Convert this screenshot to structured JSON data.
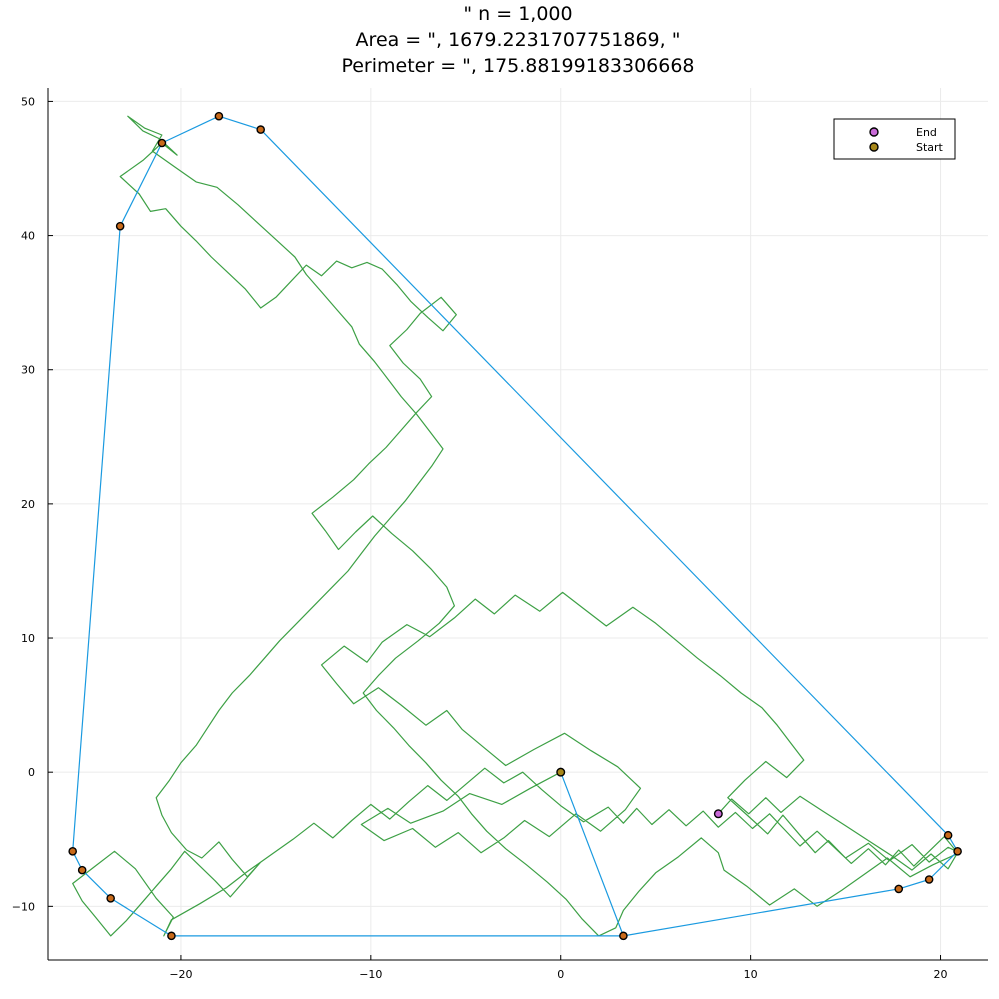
{
  "chart_data": {
    "type": "line",
    "title_lines": [
      "\" n = 1,000",
      "Area = \", 1679.2231707751869, \"",
      "Perimeter = \", 175.88199183306668"
    ],
    "xlabel": "",
    "ylabel": "",
    "xlim": [
      -27,
      22.5
    ],
    "ylim": [
      -14,
      51
    ],
    "x_ticks": [
      -20,
      -10,
      0,
      10,
      20
    ],
    "y_ticks": [
      -10,
      0,
      10,
      20,
      30,
      40,
      50
    ],
    "grid": true,
    "legend_position": "top-right",
    "legend": [
      {
        "label": "End",
        "color": "#c86ad7"
      },
      {
        "label": "Start",
        "color": "#a8881a"
      }
    ],
    "colors": {
      "walk": "#3da045",
      "hull": "#1a9ae0",
      "end": "#c86ad7",
      "start": "#a8881a",
      "hull_vertex": "#c86a1a"
    },
    "series": [
      {
        "role": "walk",
        "x": [
          0,
          -1.6,
          -3.1,
          -4.8,
          -6.2,
          -7.9,
          -9.1,
          -10.5,
          -9.3,
          -7.8,
          -6.6,
          -5.4,
          -4.2,
          -3.0,
          -1.9,
          -0.6,
          0.8,
          2.1,
          3.4,
          4.2,
          3.0,
          1.6,
          0.2,
          -1.4,
          -2.9,
          -4.1,
          -5.2,
          -6.0,
          -7.1,
          -8.4,
          -9.6,
          -10.9,
          -11.8,
          -12.6,
          -11.4,
          -10.2,
          -9.4,
          -8.1,
          -6.9,
          -5.6,
          -4.5,
          -3.5,
          -2.4,
          -1.1,
          0.1,
          1.2,
          2.4,
          3.8,
          5.0,
          6.1,
          7.2,
          8.4,
          9.5,
          10.6,
          11.4,
          12.1,
          12.8,
          11.9,
          10.8,
          9.7,
          8.8,
          9.9,
          10.9,
          11.7,
          12.6,
          13.4,
          14.1,
          15.0,
          16.2,
          17.3,
          18.5,
          19.4,
          20.4,
          21.0,
          19.6,
          18.4,
          17.2,
          16.0,
          14.8,
          13.5,
          12.3,
          11.0,
          9.8,
          8.6,
          8.3,
          7.4,
          6.2,
          5.0,
          4.1,
          3.3,
          2.9,
          2.0,
          1.1,
          0.3,
          -0.7,
          -1.8,
          -2.9,
          -3.9,
          -4.7,
          -5.4,
          -6.3,
          -7.1,
          -8.0,
          -8.8,
          -9.7,
          -10.4,
          -9.6,
          -8.7,
          -7.5,
          -6.4,
          -5.6,
          -6.0,
          -6.8,
          -7.8,
          -8.9,
          -9.9,
          -10.8,
          -11.7,
          -12.4,
          -13.1,
          -12.0,
          -10.9,
          -10.1,
          -9.2,
          -8.4,
          -7.6,
          -6.8,
          -7.4,
          -8.3,
          -9.0,
          -8.1,
          -7.4,
          -6.3,
          -5.5,
          -6.2,
          -7.0,
          -7.9,
          -8.6,
          -9.4,
          -10.2,
          -11.0,
          -11.8,
          -12.6,
          -13.4,
          -14.2,
          -15.0,
          -15.8,
          -16.6,
          -17.5,
          -18.4,
          -19.2,
          -20.0,
          -20.8,
          -21.6,
          -22.2,
          -23.2,
          -22.0,
          -21.0,
          -20.2,
          -21.1,
          -22.0,
          -22.8,
          -21.9,
          -21.0,
          -21.5,
          -20.3,
          -19.2,
          -18.1,
          -17.0,
          -16.0,
          -15.0,
          -14.0,
          -13.4,
          -12.6,
          -11.8,
          -11.0,
          -10.6,
          -9.8,
          -9.1,
          -8.4,
          -7.6,
          -6.9,
          -6.2,
          -6.8,
          -7.5,
          -8.2,
          -9.0,
          -9.8,
          -10.5,
          -11.2,
          -12.1,
          -13.0,
          -13.9,
          -14.8,
          -15.6,
          -16.4,
          -17.3,
          -18.0,
          -18.6,
          -19.2,
          -20.0,
          -20.6,
          -21.3,
          -21.0,
          -20.5,
          -19.7,
          -18.9,
          -18.0,
          -17.3,
          -16.5,
          -15.8,
          -16.6,
          -17.4,
          -18.2,
          -19.0,
          -19.8,
          -20.5,
          -21.3,
          -22.1,
          -22.9,
          -23.7,
          -24.5,
          -25.2,
          -25.7,
          -24.6,
          -23.5,
          -22.4,
          -21.3,
          -20.4,
          -20.9,
          -20.5,
          -19.0,
          -17.6,
          -16.5,
          -15.3,
          -14.1,
          -13.0,
          -12.0,
          -11.0,
          -10.0,
          -9.0,
          -8.0,
          -7.0,
          -6.0,
          -5.0,
          -4.0,
          -3.0,
          -2.0,
          -1.0,
          0,
          1.2,
          2.5,
          3.3,
          4.0,
          4.8,
          5.7,
          6.6,
          7.5,
          8.3,
          9.2,
          10.1,
          11.0,
          11.8,
          12.6,
          13.5,
          14.4,
          15.3,
          16.2,
          17.1,
          17.8,
          18.6,
          19.4,
          20.2,
          20.9,
          20.4,
          19.5,
          18.5,
          17.4,
          16.2,
          15.0,
          13.8,
          12.6,
          11.6,
          10.8,
          9.9,
          9.0,
          8.3
        ],
        "y": [
          0,
          -1.2,
          -2.4,
          -1.6,
          -2.9,
          -3.8,
          -2.7,
          -3.9,
          -5.1,
          -4.2,
          -5.6,
          -4.5,
          -6.0,
          -4.9,
          -3.6,
          -4.8,
          -3.1,
          -4.4,
          -2.8,
          -1.2,
          0.4,
          1.6,
          2.9,
          1.7,
          0.5,
          1.9,
          3.2,
          4.6,
          3.5,
          5.0,
          6.3,
          5.1,
          6.6,
          8.0,
          9.4,
          8.2,
          9.7,
          11.0,
          10.1,
          11.5,
          12.9,
          11.8,
          13.2,
          12.0,
          13.4,
          12.2,
          10.9,
          12.3,
          11.1,
          9.8,
          8.5,
          7.2,
          5.9,
          4.8,
          3.5,
          2.2,
          0.9,
          -0.4,
          0.8,
          -0.6,
          -1.9,
          -3.3,
          -4.6,
          -3.2,
          -4.7,
          -6.0,
          -5.1,
          -6.4,
          -5.3,
          -6.6,
          -5.4,
          -6.7,
          -5.6,
          -6.0,
          -6.9,
          -7.8,
          -6.4,
          -7.6,
          -8.8,
          -10.0,
          -8.7,
          -9.9,
          -8.5,
          -7.3,
          -6.0,
          -4.9,
          -6.3,
          -7.5,
          -8.9,
          -10.3,
          -11.6,
          -12.2,
          -10.9,
          -9.5,
          -8.2,
          -6.9,
          -5.7,
          -4.4,
          -3.1,
          -1.8,
          -0.6,
          0.7,
          2.0,
          3.3,
          4.6,
          5.9,
          7.2,
          8.5,
          9.8,
          11.1,
          12.4,
          13.8,
          15.1,
          16.5,
          17.8,
          19.1,
          17.9,
          16.6,
          18.0,
          19.3,
          20.5,
          21.8,
          23.0,
          24.2,
          25.5,
          26.8,
          28.0,
          29.3,
          30.5,
          31.8,
          33.0,
          34.2,
          35.4,
          34.1,
          32.9,
          33.9,
          35.1,
          36.3,
          37.5,
          38.0,
          37.6,
          38.1,
          37.0,
          37.8,
          36.6,
          35.4,
          34.6,
          36.0,
          37.2,
          38.4,
          39.6,
          40.7,
          42.0,
          41.8,
          43.1,
          44.4,
          45.6,
          46.9,
          46.0,
          47.2,
          47.8,
          48.9,
          48.0,
          47.5,
          46.3,
          45.1,
          44.0,
          43.6,
          42.3,
          41.0,
          39.7,
          38.4,
          37.1,
          35.8,
          34.5,
          33.2,
          31.9,
          30.6,
          29.3,
          28.0,
          26.7,
          25.4,
          24.1,
          22.8,
          21.5,
          20.2,
          18.9,
          17.6,
          16.3,
          15.0,
          13.7,
          12.4,
          11.1,
          9.8,
          8.5,
          7.2,
          5.9,
          4.6,
          3.3,
          2.0,
          0.7,
          -0.6,
          -1.9,
          -3.2,
          -4.5,
          -5.8,
          -6.4,
          -5.2,
          -6.5,
          -7.8,
          -6.7,
          -8.0,
          -9.3,
          -8.1,
          -7.0,
          -5.9,
          -7.2,
          -8.5,
          -9.8,
          -11.1,
          -12.2,
          -10.8,
          -9.6,
          -8.3,
          -7.1,
          -5.9,
          -7.2,
          -9.4,
          -10.8,
          -12.2,
          -11.0,
          -9.8,
          -8.6,
          -7.4,
          -6.2,
          -5.0,
          -3.8,
          -4.9,
          -3.6,
          -2.4,
          -3.5,
          -2.2,
          -1.0,
          -2.1,
          -0.9,
          0.3,
          -0.8,
          0,
          -1.3,
          -2.5,
          -3.7,
          -2.6,
          -3.8,
          -2.7,
          -3.9,
          -2.8,
          -4.0,
          -2.9,
          -4.1,
          -3.0,
          -4.2,
          -3.1,
          -4.3,
          -5.5,
          -4.4,
          -5.6,
          -6.8,
          -5.7,
          -6.9,
          -5.8,
          -7.0,
          -5.9,
          -4.8,
          -6.0,
          -7.2,
          -6.1,
          -7.3,
          -6.2,
          -5.1,
          -4.0,
          -2.9,
          -1.8,
          -3.0,
          -1.9,
          -3.1,
          -2.0,
          -3.1
        ]
      },
      {
        "role": "hull",
        "x": [
          0,
          3.3,
          17.8,
          19.4,
          20.9,
          20.4,
          -15.8,
          -18.0,
          -21.0,
          -23.2,
          -25.7,
          -25.2,
          -23.7,
          -20.5,
          3.3
        ],
        "y": [
          0,
          -12.2,
          -8.7,
          -8.0,
          -5.9,
          -4.7,
          47.9,
          48.9,
          46.9,
          40.7,
          -5.9,
          -7.3,
          -9.4,
          -12.2,
          -12.2
        ]
      }
    ],
    "hull_vertices": {
      "x": [
        3.3,
        17.8,
        19.4,
        20.9,
        20.4,
        -15.8,
        -18.0,
        -21.0,
        -23.2,
        -25.7,
        -25.2,
        -23.7,
        -20.5
      ],
      "y": [
        -12.2,
        -8.7,
        -8.0,
        -5.9,
        -4.7,
        47.9,
        48.9,
        46.9,
        40.7,
        -5.9,
        -7.3,
        -9.4,
        -12.2
      ]
    },
    "start_point": {
      "x": 0,
      "y": 0
    },
    "end_point": {
      "x": 8.3,
      "y": -3.1
    }
  }
}
